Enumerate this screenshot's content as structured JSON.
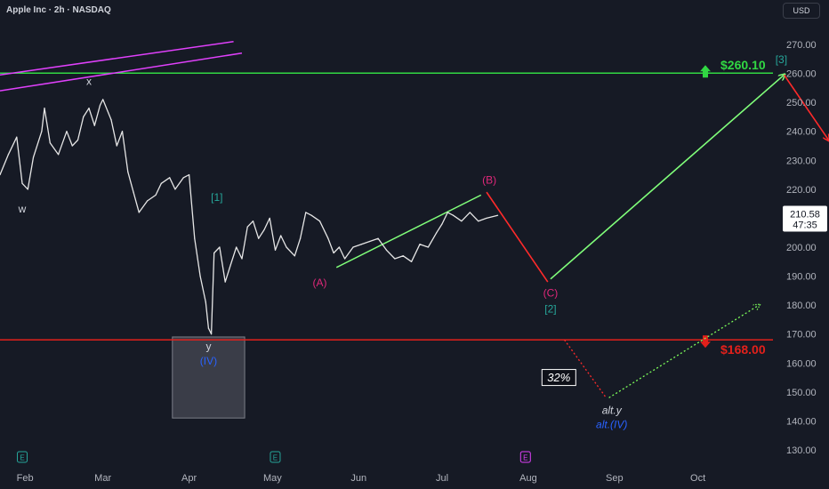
{
  "header": {
    "title": "Apple Inc · 2h · NASDAQ"
  },
  "currency_button": "USD",
  "colors": {
    "background": "#161a25",
    "grid": "#1f2330",
    "resistance": "#31d843",
    "support": "#e3201b",
    "wave_pink": "#e0287a",
    "wave_teal": "#26a69a",
    "wave_blue": "#2962ff",
    "text": "#d1d4dc",
    "projection_green": "#80ff7a",
    "projection_red": "#ff2a2a"
  },
  "chart_data": {
    "type": "line",
    "title": "Apple Inc · 2h · NASDAQ",
    "ylabel": "USD",
    "ylim": [
      125,
      278
    ],
    "x_range": [
      "2025-01-23",
      "2025-10-28"
    ],
    "x_ticks": [
      {
        "date": "2025-02-01",
        "label": "Feb"
      },
      {
        "date": "2025-03-01",
        "label": "Mar"
      },
      {
        "date": "2025-04-01",
        "label": "Apr"
      },
      {
        "date": "2025-05-01",
        "label": "May"
      },
      {
        "date": "2025-06-01",
        "label": "Jun"
      },
      {
        "date": "2025-07-01",
        "label": "Jul"
      },
      {
        "date": "2025-08-01",
        "label": "Aug"
      },
      {
        "date": "2025-09-01",
        "label": "Sep"
      },
      {
        "date": "2025-10-01",
        "label": "Oct"
      }
    ],
    "y_ticks": [
      130,
      140,
      150,
      160,
      170,
      180,
      190,
      200,
      210,
      220,
      230,
      240,
      250,
      260,
      270
    ],
    "y_tick_labels": [
      "130.00",
      "140.00",
      "150.00",
      "160.00",
      "170.00",
      "180.00",
      "190.00",
      "200.00",
      "210.00",
      "220.00",
      "230.00",
      "240.00",
      "250.00",
      "260.00",
      "270.00"
    ],
    "grid": false,
    "series": [
      {
        "values": [
          [
            "2025-01-23",
            225
          ],
          [
            "2025-01-26",
            232
          ],
          [
            "2025-01-29",
            238
          ],
          [
            "2025-01-31",
            222
          ],
          [
            "2025-02-02",
            220
          ],
          [
            "2025-02-04",
            231
          ],
          [
            "2025-02-07",
            240
          ],
          [
            "2025-02-08",
            248
          ],
          [
            "2025-02-10",
            236
          ],
          [
            "2025-02-13",
            232
          ],
          [
            "2025-02-16",
            240
          ],
          [
            "2025-02-18",
            235
          ],
          [
            "2025-02-20",
            237
          ],
          [
            "2025-02-22",
            245
          ],
          [
            "2025-02-24",
            248
          ],
          [
            "2025-02-26",
            242
          ],
          [
            "2025-02-28",
            249
          ],
          [
            "2025-03-01",
            251
          ],
          [
            "2025-03-04",
            244
          ],
          [
            "2025-03-06",
            235
          ],
          [
            "2025-03-08",
            240
          ],
          [
            "2025-03-10",
            226
          ],
          [
            "2025-03-12",
            219
          ],
          [
            "2025-03-14",
            212
          ],
          [
            "2025-03-17",
            216
          ],
          [
            "2025-03-20",
            218
          ],
          [
            "2025-03-22",
            222
          ],
          [
            "2025-03-25",
            224
          ],
          [
            "2025-03-27",
            220
          ],
          [
            "2025-03-30",
            224
          ],
          [
            "2025-04-01",
            225
          ],
          [
            "2025-04-03",
            203
          ],
          [
            "2025-04-05",
            190
          ],
          [
            "2025-04-07",
            181
          ],
          [
            "2025-04-08",
            172
          ],
          [
            "2025-04-09",
            170
          ],
          [
            "2025-04-10",
            198
          ],
          [
            "2025-04-12",
            200
          ],
          [
            "2025-04-14",
            188
          ],
          [
            "2025-04-16",
            194
          ],
          [
            "2025-04-18",
            200
          ],
          [
            "2025-04-20",
            196
          ],
          [
            "2025-04-22",
            207
          ],
          [
            "2025-04-24",
            209
          ],
          [
            "2025-04-26",
            203
          ],
          [
            "2025-04-28",
            206
          ],
          [
            "2025-04-30",
            210
          ],
          [
            "2025-05-02",
            199
          ],
          [
            "2025-05-04",
            204
          ],
          [
            "2025-05-06",
            200
          ],
          [
            "2025-05-09",
            197
          ],
          [
            "2025-05-11",
            203
          ],
          [
            "2025-05-13",
            212
          ],
          [
            "2025-05-15",
            211
          ],
          [
            "2025-05-18",
            209
          ],
          [
            "2025-05-21",
            203
          ],
          [
            "2025-05-23",
            198
          ],
          [
            "2025-05-25",
            200
          ],
          [
            "2025-05-27",
            196
          ],
          [
            "2025-05-30",
            200
          ],
          [
            "2025-06-02",
            201
          ],
          [
            "2025-06-05",
            202
          ],
          [
            "2025-06-08",
            203
          ],
          [
            "2025-06-11",
            199
          ],
          [
            "2025-06-14",
            196
          ],
          [
            "2025-06-17",
            197
          ],
          [
            "2025-06-20",
            195
          ],
          [
            "2025-06-23",
            201
          ],
          [
            "2025-06-26",
            200
          ],
          [
            "2025-06-29",
            205
          ],
          [
            "2025-07-01",
            208
          ],
          [
            "2025-07-03",
            212
          ],
          [
            "2025-07-05",
            211
          ],
          [
            "2025-07-08",
            209
          ],
          [
            "2025-07-11",
            212
          ],
          [
            "2025-07-14",
            209
          ],
          [
            "2025-07-17",
            210
          ],
          [
            "2025-07-21",
            211
          ]
        ]
      }
    ],
    "last_price": "210.58",
    "countdown": "47:35",
    "levels": [
      {
        "label": "$260.10",
        "value": 260.1,
        "color": "#31d843",
        "arrow": "up"
      },
      {
        "label": "$168.00",
        "value": 168.0,
        "color": "#e3201b",
        "arrow": "down"
      }
    ],
    "zone": {
      "start": "2025-03-26",
      "end": "2025-04-21",
      "low": 141,
      "high": 169
    },
    "trendlines": [
      {
        "color": "#e040fb",
        "points": [
          [
            "2025-01-23",
            259.5
          ],
          [
            "2025-04-17",
            271
          ]
        ]
      },
      {
        "color": "#e040fb",
        "points": [
          [
            "2025-01-23",
            254
          ],
          [
            "2025-04-20",
            267
          ]
        ]
      },
      {
        "color": "#80ff7a",
        "points": [
          [
            "2025-05-24",
            193
          ],
          [
            "2025-07-15",
            218
          ]
        ]
      }
    ],
    "projections": [
      {
        "color": "#ff2a2a",
        "dashed": false,
        "arrow": false,
        "points": [
          [
            "2025-07-17",
            219
          ],
          [
            "2025-08-08",
            188
          ]
        ]
      },
      {
        "color": "#80ff7a",
        "dashed": false,
        "arrow": true,
        "points": [
          [
            "2025-08-09",
            189
          ],
          [
            "2025-11-01",
            259.5
          ]
        ]
      },
      {
        "color": "#ff2a2a",
        "dashed": false,
        "arrow": true,
        "points": [
          [
            "2025-11-01",
            259.5
          ],
          [
            "2025-11-17",
            237
          ]
        ]
      },
      {
        "color": "#ff2a2a",
        "dashed": true,
        "arrow": false,
        "points": [
          [
            "2025-08-14",
            168
          ],
          [
            "2025-08-29",
            148
          ]
        ]
      },
      {
        "color": "#7cfc5a",
        "dashed": true,
        "arrow": true,
        "points": [
          [
            "2025-08-30",
            148
          ],
          [
            "2025-10-23",
            180
          ]
        ]
      }
    ],
    "annotations": [
      {
        "text": "x",
        "color": "#d1d4dc",
        "at": [
          "2025-02-24",
          256
        ],
        "italic": false
      },
      {
        "text": "w",
        "color": "#d1d4dc",
        "at": [
          "2025-01-31",
          212
        ],
        "italic": false
      },
      {
        "text": "[1]",
        "color": "#26a69a",
        "at": [
          "2025-04-11",
          216
        ],
        "italic": false
      },
      {
        "text": "y",
        "color": "#d1d4dc",
        "at": [
          "2025-04-08",
          164.5
        ],
        "italic": false
      },
      {
        "text": "(IV)",
        "color": "#2962ff",
        "at": [
          "2025-04-08",
          159.5
        ],
        "italic": false
      },
      {
        "text": "(A)",
        "color": "#e0287a",
        "at": [
          "2025-05-18",
          186.5
        ],
        "italic": false
      },
      {
        "text": "(B)",
        "color": "#e0287a",
        "at": [
          "2025-07-18",
          222
        ],
        "italic": false
      },
      {
        "text": "(C)",
        "color": "#e0287a",
        "at": [
          "2025-08-09",
          183
        ],
        "italic": false
      },
      {
        "text": "[2]",
        "color": "#26a69a",
        "at": [
          "2025-08-09",
          177.5
        ],
        "italic": false
      },
      {
        "text": "[3]",
        "color": "#26a69a",
        "at": [
          "2025-10-31",
          263.5
        ],
        "italic": false
      },
      {
        "text": "alt.y",
        "color": "#d1d4dc",
        "at": [
          "2025-08-31",
          142.5
        ],
        "italic": true
      },
      {
        "text": "alt.(IV)",
        "color": "#2962ff",
        "at": [
          "2025-08-31",
          137.5
        ],
        "italic": true
      }
    ],
    "boxed_label": {
      "text": "32%",
      "at": [
        "2025-08-12",
        155
      ]
    },
    "event_badges": [
      {
        "letter": "E",
        "date": "2025-01-31",
        "color": "#26a69a"
      },
      {
        "letter": "E",
        "date": "2025-05-02",
        "color": "#26a69a"
      },
      {
        "letter": "E",
        "date": "2025-07-31",
        "color": "#e040fb"
      }
    ]
  }
}
